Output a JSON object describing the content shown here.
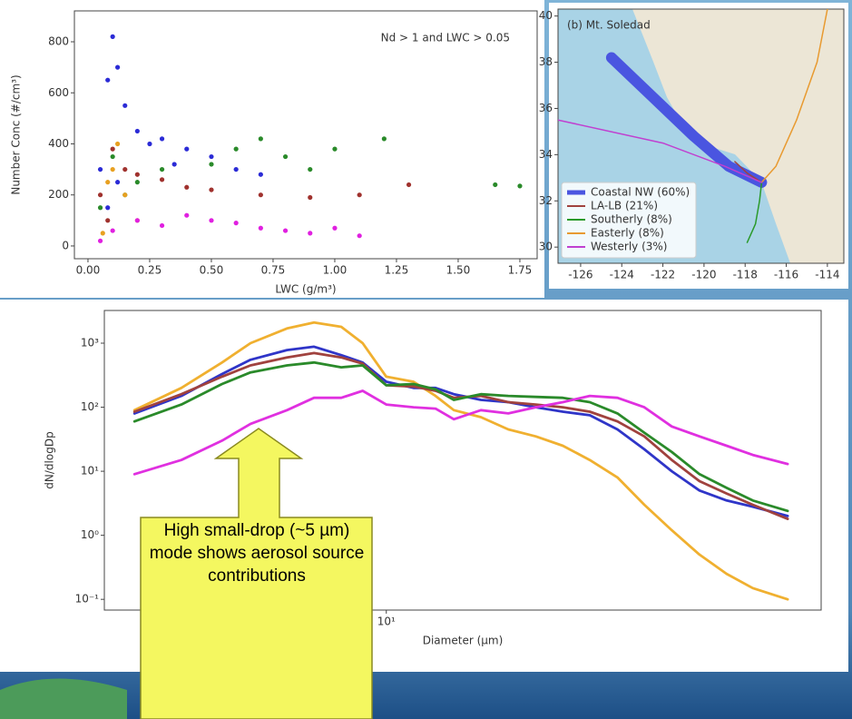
{
  "chart_data": [
    {
      "type": "scatter",
      "title": "Nd > 1 and LWC > 0.05",
      "xlabel": "LWC (g/m³)",
      "ylabel": "Number Conc (#/cm³)",
      "xlim": [
        -0.055,
        1.82
      ],
      "ylim": [
        -50,
        921
      ],
      "xticks": [
        {
          "value": 0,
          "label": "0.00"
        },
        {
          "value": 0.25,
          "label": "0.25"
        },
        {
          "value": 0.5,
          "label": "0.50"
        },
        {
          "value": 0.75,
          "label": "0.75"
        },
        {
          "value": 1,
          "label": "1.00"
        },
        {
          "value": 1.25,
          "label": "1.25"
        },
        {
          "value": 1.5,
          "label": "1.50"
        },
        {
          "value": 1.75,
          "label": "1.75"
        }
      ],
      "yticks": [
        0,
        200,
        400,
        600,
        800
      ],
      "series": [
        {
          "color": "#2b2bd6",
          "x": [
            0.05,
            0.08,
            0.1,
            0.12,
            0.15,
            0.2,
            0.3,
            0.4,
            0.5,
            0.6,
            0.08,
            0.12,
            0.25,
            0.35,
            0.7
          ],
          "values": [
            300,
            650,
            820,
            700,
            550,
            450,
            420,
            380,
            350,
            300,
            150,
            250,
            400,
            320,
            280
          ]
        },
        {
          "color": "#a0322e",
          "x": [
            0.05,
            0.1,
            0.15,
            0.2,
            0.3,
            0.4,
            0.5,
            0.7,
            0.9,
            1.1,
            1.3,
            0.08
          ],
          "values": [
            200,
            380,
            300,
            280,
            260,
            230,
            220,
            200,
            190,
            200,
            240,
            100
          ]
        },
        {
          "color": "#2a8a2a",
          "x": [
            0.05,
            0.1,
            0.2,
            0.3,
            0.5,
            0.6,
            0.7,
            0.8,
            0.9,
            1.0,
            1.2,
            0.15,
            1.65,
            1.75
          ],
          "values": [
            150,
            350,
            250,
            300,
            320,
            380,
            420,
            350,
            300,
            380,
            420,
            200,
            240,
            235
          ]
        },
        {
          "color": "#e8a020",
          "x": [
            0.06,
            0.1,
            0.15,
            0.2,
            0.12,
            0.08
          ],
          "values": [
            50,
            300,
            200,
            100,
            400,
            250
          ]
        },
        {
          "color": "#e020e0",
          "x": [
            0.05,
            0.1,
            0.2,
            0.3,
            0.4,
            0.5,
            0.6,
            0.7,
            0.8,
            0.9,
            1.0,
            1.1
          ],
          "values": [
            20,
            60,
            100,
            80,
            120,
            100,
            90,
            70,
            60,
            50,
            70,
            40
          ]
        }
      ]
    },
    {
      "type": "map",
      "title": "(b) Mt. Soledad",
      "legend": "lower left",
      "xlim": [
        -127.1,
        -113.2
      ],
      "ylim": [
        29.3,
        40.3
      ],
      "xticks": [
        -126,
        -124,
        -122,
        -120,
        -118,
        -116,
        -114
      ],
      "yticks": [
        30,
        32,
        34,
        36,
        38,
        40
      ],
      "series": [
        {
          "name": "Coastal NW (60%)",
          "color": "#4a55e0",
          "x": [
            -124.5,
            -122.5,
            -120.5,
            -118.8,
            -117.2
          ],
          "values": [
            38.2,
            36.5,
            34.8,
            33.5,
            32.8
          ]
        },
        {
          "name": "LA-LB (21%)",
          "color": "#a0423e",
          "x": [
            -118.5,
            -117.9,
            -117.2
          ],
          "values": [
            33.7,
            33.2,
            32.8
          ]
        },
        {
          "name": "Southerly (8%)",
          "color": "#2a9a2a",
          "x": [
            -117.9,
            -117.5,
            -117.3,
            -117.2
          ],
          "values": [
            30.2,
            31,
            32,
            32.8
          ]
        },
        {
          "name": "Easterly (8%)",
          "color": "#e89a30",
          "x": [
            -114,
            -114.5,
            -115.5,
            -116.5,
            -117.2
          ],
          "values": [
            40.3,
            38,
            35.5,
            33.5,
            32.8
          ]
        },
        {
          "name": "Westerly (3%)",
          "color": "#c040d0",
          "x": [
            -127.1,
            -122,
            -119,
            -117.2
          ],
          "values": [
            35.5,
            34.5,
            33.5,
            32.8
          ]
        }
      ]
    },
    {
      "type": "line",
      "xlabel": "Diameter (µm)",
      "ylabel": "dN/dlogDp",
      "xlog": true,
      "ylog": true,
      "annotation": "High small-drop (~5 µm) mode shows aerosol source contributions",
      "xlim": [
        1.65,
        161
      ],
      "ylim": [
        0.068,
        3240
      ],
      "xticks": [
        {
          "value": 10,
          "label": "10¹"
        }
      ],
      "yticks": [
        {
          "value": 0.1,
          "label": "10⁻¹"
        },
        {
          "value": 1,
          "label": "10⁰"
        },
        {
          "value": 10,
          "label": "10¹"
        },
        {
          "value": 100,
          "label": "10²"
        },
        {
          "value": 1000,
          "label": "10³"
        }
      ],
      "x": [
        2,
        2.7,
        3.5,
        4.2,
        5.3,
        6.3,
        7.5,
        8.6,
        10,
        11.9,
        13.7,
        15.4,
        18.3,
        21.8,
        26,
        30.9,
        36.7,
        43.8,
        52,
        62,
        74,
        88,
        104,
        130
      ],
      "series": [
        {
          "color": "#f0b030",
          "values": [
            90,
            200,
            500,
            1000,
            1700,
            2100,
            1800,
            1000,
            300,
            250,
            150,
            90,
            70,
            45,
            35,
            25,
            15,
            8,
            3,
            1.2,
            0.5,
            0.25,
            0.15,
            0.1
          ]
        },
        {
          "color": "#2f35c8",
          "values": [
            80,
            150,
            330,
            550,
            780,
            880,
            650,
            500,
            250,
            200,
            200,
            160,
            130,
            120,
            100,
            85,
            75,
            45,
            22,
            10,
            5,
            3.5,
            2.8,
            2
          ]
        },
        {
          "color": "#a0423e",
          "values": [
            85,
            160,
            300,
            450,
            600,
            700,
            600,
            480,
            220,
            210,
            180,
            140,
            150,
            120,
            110,
            100,
            85,
            60,
            35,
            15,
            7,
            4.5,
            3,
            1.8
          ]
        },
        {
          "color": "#2a8a2a",
          "values": [
            60,
            110,
            230,
            350,
            450,
            500,
            420,
            450,
            220,
            230,
            190,
            130,
            160,
            150,
            145,
            140,
            120,
            80,
            40,
            20,
            9,
            5.5,
            3.5,
            2.4
          ]
        },
        {
          "color": "#e030e0",
          "values": [
            9,
            15,
            30,
            55,
            90,
            140,
            140,
            180,
            110,
            100,
            95,
            65,
            90,
            80,
            100,
            120,
            150,
            140,
            100,
            50,
            35,
            25,
            18,
            13
          ]
        }
      ]
    }
  ]
}
